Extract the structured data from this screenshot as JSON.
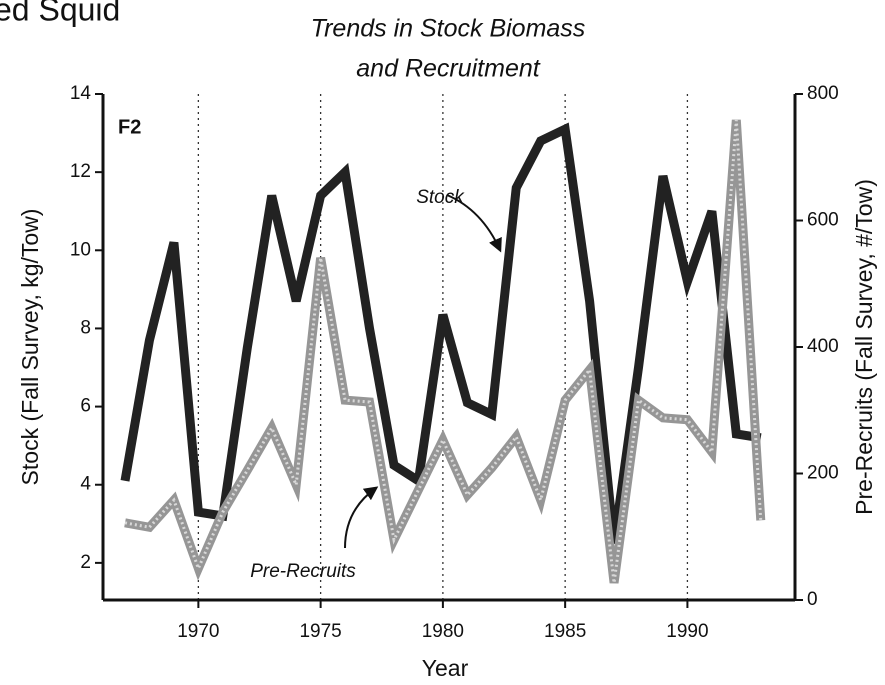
{
  "chart_data": {
    "type": "line",
    "header_fragment": "ed Squid",
    "title_lines": [
      "Trends in Stock Biomass",
      "and Recruitment"
    ],
    "panel_label": "F2",
    "x_label": "Year",
    "y_label": "Stock (Fall Survey, kg/Tow)",
    "y2_label": "Pre-Recruits (Fall Survey, #/Tow)",
    "x": [
      1967,
      1968,
      1969,
      1970,
      1971,
      1972,
      1973,
      1974,
      1975,
      1976,
      1977,
      1978,
      1979,
      1980,
      1981,
      1982,
      1983,
      1984,
      1985,
      1986,
      1987,
      1988,
      1989,
      1990,
      1991,
      1992,
      1993
    ],
    "series": [
      {
        "name": "Stock",
        "color": "#222222",
        "axis": "y",
        "values": [
          4.1,
          7.7,
          10.2,
          3.3,
          3.2,
          7.5,
          11.4,
          8.7,
          11.4,
          12.0,
          8.0,
          4.5,
          4.1,
          8.35,
          6.1,
          5.8,
          11.6,
          12.8,
          13.1,
          8.7,
          2.5,
          7.0,
          11.9,
          9.2,
          11.0,
          5.3,
          5.2
        ]
      },
      {
        "name": "Pre-Recruits",
        "color": "#969696",
        "axis": "y2",
        "values": [
          122,
          115,
          158,
          50,
          139,
          205,
          272,
          182,
          541,
          316,
          313,
          95,
          174,
          253,
          166,
          209,
          258,
          158,
          316,
          364,
          27,
          316,
          288,
          285,
          234,
          759,
          126
        ]
      }
    ],
    "xlim": [
      1966.1,
      1994.4
    ],
    "xticks": [
      1970,
      1975,
      1980,
      1985,
      1990
    ],
    "ylim": [
      1.05,
      14
    ],
    "yticks": [
      2,
      4,
      6,
      8,
      10,
      12,
      14
    ],
    "y2lim": [
      0,
      800
    ],
    "y2ticks": [
      0,
      200,
      400,
      600,
      800
    ],
    "vertical_grid": true
  }
}
